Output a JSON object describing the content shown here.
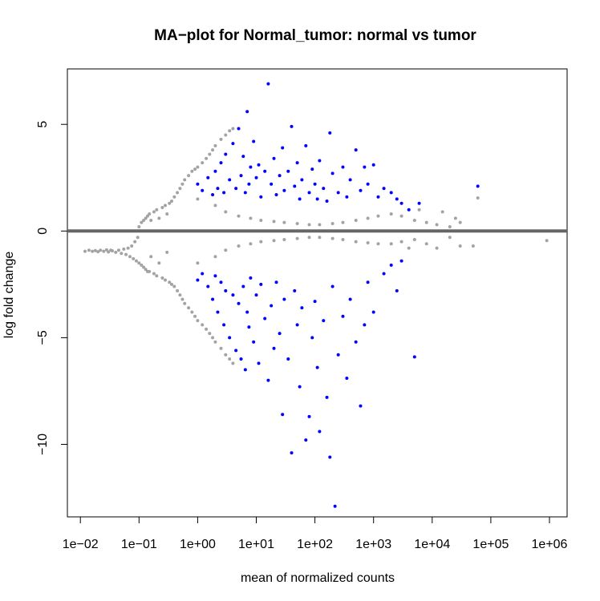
{
  "colors": {
    "non_significant": "#a3a3a3",
    "significant": "#0000ff",
    "zero_line": "#666666",
    "axis": "#000000",
    "background": "#ffffff"
  },
  "chart_data": {
    "type": "scatter",
    "title": "MA−plot for Normal_tumor: normal vs tumor",
    "xlabel": "mean of normalized counts",
    "ylabel": "log fold change",
    "x_scale": "log10",
    "xlim": [
      0.006,
      2000000
    ],
    "ylim": [
      -13.4,
      7.6
    ],
    "x_ticks": [
      {
        "value": 0.01,
        "label": "1e−02"
      },
      {
        "value": 0.1,
        "label": "1e−01"
      },
      {
        "value": 1,
        "label": "1e+00"
      },
      {
        "value": 10,
        "label": "1e+01"
      },
      {
        "value": 100,
        "label": "1e+02"
      },
      {
        "value": 1000,
        "label": "1e+03"
      },
      {
        "value": 10000,
        "label": "1e+04"
      },
      {
        "value": 100000,
        "label": "1e+05"
      },
      {
        "value": 1000000,
        "label": "1e+06"
      }
    ],
    "y_ticks": [
      {
        "value": 5,
        "label": "5"
      },
      {
        "value": 0,
        "label": "0"
      },
      {
        "value": -5,
        "label": "−5"
      },
      {
        "value": -10,
        "label": "−10"
      }
    ],
    "horizontal_line": 0,
    "grid": false,
    "legend": "none",
    "series": [
      {
        "values_significant": false,
        "color": "#a3a3a3",
        "points": [
          [
            0.012,
            -0.95
          ],
          [
            0.014,
            -0.9
          ],
          [
            0.016,
            -0.95
          ],
          [
            0.018,
            -0.92
          ],
          [
            0.02,
            -0.97
          ],
          [
            0.022,
            -0.9
          ],
          [
            0.025,
            -0.95
          ],
          [
            0.028,
            -0.88
          ],
          [
            0.03,
            -0.98
          ],
          [
            0.033,
            -0.9
          ],
          [
            0.035,
            -0.93
          ],
          [
            0.04,
            -1.0
          ],
          [
            0.045,
            -0.9
          ],
          [
            0.05,
            -1.05
          ],
          [
            0.055,
            -0.85
          ],
          [
            0.06,
            -1.1
          ],
          [
            0.065,
            -0.8
          ],
          [
            0.07,
            -1.2
          ],
          [
            0.075,
            -0.7
          ],
          [
            0.08,
            -1.3
          ],
          [
            0.085,
            -0.5
          ],
          [
            0.09,
            -1.4
          ],
          [
            0.095,
            -0.3
          ],
          [
            0.1,
            -1.5
          ],
          [
            0.1,
            0.2
          ],
          [
            0.11,
            -1.6
          ],
          [
            0.11,
            0.4
          ],
          [
            0.12,
            -1.7
          ],
          [
            0.12,
            0.5
          ],
          [
            0.13,
            -1.8
          ],
          [
            0.13,
            0.6
          ],
          [
            0.14,
            -1.9
          ],
          [
            0.14,
            0.7
          ],
          [
            0.15,
            -1.9
          ],
          [
            0.15,
            0.8
          ],
          [
            0.16,
            -1.2
          ],
          [
            0.16,
            0.5
          ],
          [
            0.18,
            -2.0
          ],
          [
            0.18,
            0.9
          ],
          [
            0.2,
            -2.1
          ],
          [
            0.2,
            1.0
          ],
          [
            0.22,
            -1.5
          ],
          [
            0.22,
            0.6
          ],
          [
            0.25,
            -2.2
          ],
          [
            0.25,
            1.1
          ],
          [
            0.28,
            -2.3
          ],
          [
            0.28,
            1.2
          ],
          [
            0.3,
            -1.0
          ],
          [
            0.3,
            0.8
          ],
          [
            0.33,
            -2.4
          ],
          [
            0.33,
            1.3
          ],
          [
            0.36,
            -2.5
          ],
          [
            0.36,
            1.4
          ],
          [
            0.4,
            -2.6
          ],
          [
            0.4,
            1.6
          ],
          [
            0.45,
            -2.8
          ],
          [
            0.45,
            1.8
          ],
          [
            0.5,
            -3.0
          ],
          [
            0.5,
            2.0
          ],
          [
            0.55,
            -3.2
          ],
          [
            0.55,
            2.2
          ],
          [
            0.6,
            -3.4
          ],
          [
            0.6,
            2.4
          ],
          [
            0.7,
            -3.6
          ],
          [
            0.7,
            2.6
          ],
          [
            0.8,
            -3.8
          ],
          [
            0.8,
            2.8
          ],
          [
            0.9,
            -4.0
          ],
          [
            0.9,
            2.9
          ],
          [
            1.0,
            -4.2
          ],
          [
            1.0,
            3.0
          ],
          [
            1.2,
            -4.4
          ],
          [
            1.2,
            3.2
          ],
          [
            1.4,
            -4.6
          ],
          [
            1.4,
            3.4
          ],
          [
            1.6,
            -4.8
          ],
          [
            1.6,
            3.6
          ],
          [
            1.8,
            -5.0
          ],
          [
            1.8,
            3.8
          ],
          [
            2.0,
            -5.2
          ],
          [
            2.0,
            4.0
          ],
          [
            2.5,
            -5.5
          ],
          [
            2.5,
            4.3
          ],
          [
            3.0,
            -5.8
          ],
          [
            3.0,
            4.5
          ],
          [
            3.5,
            -6.0
          ],
          [
            3.5,
            4.7
          ],
          [
            4.0,
            -6.2
          ],
          [
            4.0,
            4.8
          ],
          [
            1.0,
            1.5
          ],
          [
            1.0,
            -1.5
          ],
          [
            2.0,
            1.2
          ],
          [
            2.0,
            -1.2
          ],
          [
            3.0,
            0.9
          ],
          [
            3.0,
            -0.9
          ],
          [
            5.0,
            0.7
          ],
          [
            5.0,
            -0.7
          ],
          [
            8.0,
            0.6
          ],
          [
            8.0,
            -0.6
          ],
          [
            12.0,
            0.5
          ],
          [
            12.0,
            -0.5
          ],
          [
            20.0,
            0.45
          ],
          [
            20.0,
            -0.45
          ],
          [
            30.0,
            0.4
          ],
          [
            30.0,
            -0.4
          ],
          [
            50.0,
            0.35
          ],
          [
            50.0,
            -0.35
          ],
          [
            80.0,
            0.3
          ],
          [
            80.0,
            -0.3
          ],
          [
            120.0,
            0.3
          ],
          [
            120.0,
            -0.3
          ],
          [
            200.0,
            0.35
          ],
          [
            200.0,
            -0.35
          ],
          [
            300.0,
            0.4
          ],
          [
            300.0,
            -0.4
          ],
          [
            500.0,
            0.5
          ],
          [
            500.0,
            -0.5
          ],
          [
            800.0,
            0.6
          ],
          [
            800.0,
            -0.55
          ],
          [
            1200.0,
            0.7
          ],
          [
            1200.0,
            -0.6
          ],
          [
            2000.0,
            0.8
          ],
          [
            2000.0,
            -0.6
          ],
          [
            3000.0,
            0.7
          ],
          [
            3000.0,
            -0.5
          ],
          [
            5000.0,
            0.5
          ],
          [
            5000.0,
            -0.4
          ],
          [
            8000.0,
            0.4
          ],
          [
            8000.0,
            -0.6
          ],
          [
            12000.0,
            0.3
          ],
          [
            12000.0,
            -0.8
          ],
          [
            20000.0,
            0.2
          ],
          [
            20000.0,
            -0.3
          ],
          [
            30000.0,
            0.4
          ],
          [
            30000.0,
            -0.7
          ],
          [
            50000.0,
            -0.7
          ],
          [
            60000.0,
            1.55
          ],
          [
            900000.0,
            -0.45
          ],
          [
            15000.0,
            0.9
          ],
          [
            25000.0,
            0.6
          ],
          [
            6000.0,
            1.0
          ],
          [
            4000.0,
            -0.8
          ]
        ]
      },
      {
        "values_significant": true,
        "color": "#0000ff",
        "points": [
          [
            1.0,
            2.2
          ],
          [
            1.2,
            1.9
          ],
          [
            1.5,
            2.5
          ],
          [
            1.8,
            1.7
          ],
          [
            2.0,
            2.8
          ],
          [
            2.2,
            2.0
          ],
          [
            2.5,
            3.2
          ],
          [
            2.8,
            1.8
          ],
          [
            3.0,
            3.6
          ],
          [
            3.5,
            2.4
          ],
          [
            4.0,
            4.1
          ],
          [
            4.5,
            2.0
          ],
          [
            5.0,
            4.8
          ],
          [
            5.5,
            2.6
          ],
          [
            6.0,
            3.5
          ],
          [
            6.5,
            1.8
          ],
          [
            7.0,
            5.6
          ],
          [
            7.5,
            2.2
          ],
          [
            8.0,
            3.0
          ],
          [
            9.0,
            4.2
          ],
          [
            10.0,
            2.5
          ],
          [
            11.0,
            3.1
          ],
          [
            12.0,
            1.6
          ],
          [
            14.0,
            2.8
          ],
          [
            16.0,
            6.9
          ],
          [
            18.0,
            2.2
          ],
          [
            20.0,
            3.4
          ],
          [
            22.0,
            1.7
          ],
          [
            25.0,
            2.6
          ],
          [
            28.0,
            3.9
          ],
          [
            30.0,
            1.9
          ],
          [
            35.0,
            2.8
          ],
          [
            40.0,
            4.9
          ],
          [
            45.0,
            2.1
          ],
          [
            50.0,
            3.2
          ],
          [
            55.0,
            1.5
          ],
          [
            60.0,
            2.4
          ],
          [
            70.0,
            4.0
          ],
          [
            80.0,
            1.8
          ],
          [
            90.0,
            2.9
          ],
          [
            100.0,
            2.2
          ],
          [
            110.0,
            1.5
          ],
          [
            120.0,
            3.3
          ],
          [
            140.0,
            2.0
          ],
          [
            160.0,
            1.4
          ],
          [
            180.0,
            4.6
          ],
          [
            200.0,
            2.7
          ],
          [
            250.0,
            1.8
          ],
          [
            300.0,
            3.0
          ],
          [
            350.0,
            1.6
          ],
          [
            400.0,
            2.4
          ],
          [
            500.0,
            3.8
          ],
          [
            600.0,
            1.9
          ],
          [
            700.0,
            3.0
          ],
          [
            800.0,
            2.2
          ],
          [
            1000.0,
            3.1
          ],
          [
            1200.0,
            1.6
          ],
          [
            1500.0,
            2.0
          ],
          [
            2000.0,
            1.8
          ],
          [
            2500.0,
            1.5
          ],
          [
            3000.0,
            1.3
          ],
          [
            4000.0,
            1.0
          ],
          [
            6000.0,
            1.3
          ],
          [
            60000.0,
            2.1
          ],
          [
            1.0,
            -2.3
          ],
          [
            1.2,
            -2.0
          ],
          [
            1.5,
            -2.6
          ],
          [
            1.8,
            -3.2
          ],
          [
            2.0,
            -2.1
          ],
          [
            2.2,
            -3.8
          ],
          [
            2.5,
            -2.4
          ],
          [
            2.8,
            -4.4
          ],
          [
            3.0,
            -2.8
          ],
          [
            3.5,
            -5.0
          ],
          [
            4.0,
            -3.0
          ],
          [
            4.5,
            -5.6
          ],
          [
            5.0,
            -3.4
          ],
          [
            5.5,
            -6.0
          ],
          [
            6.0,
            -2.6
          ],
          [
            6.5,
            -6.5
          ],
          [
            7.0,
            -3.8
          ],
          [
            7.5,
            -4.5
          ],
          [
            8.0,
            -2.2
          ],
          [
            9.0,
            -5.2
          ],
          [
            10.0,
            -3.0
          ],
          [
            11.0,
            -6.2
          ],
          [
            12.0,
            -2.5
          ],
          [
            14.0,
            -4.1
          ],
          [
            16.0,
            -7.0
          ],
          [
            18.0,
            -3.5
          ],
          [
            20.0,
            -5.5
          ],
          [
            22.0,
            -2.4
          ],
          [
            25.0,
            -4.8
          ],
          [
            28.0,
            -8.6
          ],
          [
            30.0,
            -3.2
          ],
          [
            35.0,
            -6.0
          ],
          [
            40.0,
            -10.4
          ],
          [
            45.0,
            -2.8
          ],
          [
            50.0,
            -4.4
          ],
          [
            55.0,
            -7.3
          ],
          [
            60.0,
            -3.6
          ],
          [
            70.0,
            -9.8
          ],
          [
            80.0,
            -8.7
          ],
          [
            90.0,
            -5.0
          ],
          [
            100.0,
            -3.3
          ],
          [
            110.0,
            -6.4
          ],
          [
            120.0,
            -9.4
          ],
          [
            140.0,
            -4.2
          ],
          [
            160.0,
            -7.8
          ],
          [
            180.0,
            -10.6
          ],
          [
            200.0,
            -2.6
          ],
          [
            220.0,
            -12.9
          ],
          [
            250.0,
            -5.8
          ],
          [
            300.0,
            -4.0
          ],
          [
            350.0,
            -6.9
          ],
          [
            400.0,
            -3.2
          ],
          [
            500.0,
            -5.2
          ],
          [
            600.0,
            -8.2
          ],
          [
            700.0,
            -4.4
          ],
          [
            800.0,
            -2.4
          ],
          [
            1000.0,
            -3.8
          ],
          [
            1500.0,
            -2.0
          ],
          [
            2000.0,
            -1.6
          ],
          [
            3000.0,
            -1.4
          ],
          [
            5000.0,
            -5.9
          ],
          [
            2500.0,
            -2.8
          ]
        ]
      }
    ]
  }
}
